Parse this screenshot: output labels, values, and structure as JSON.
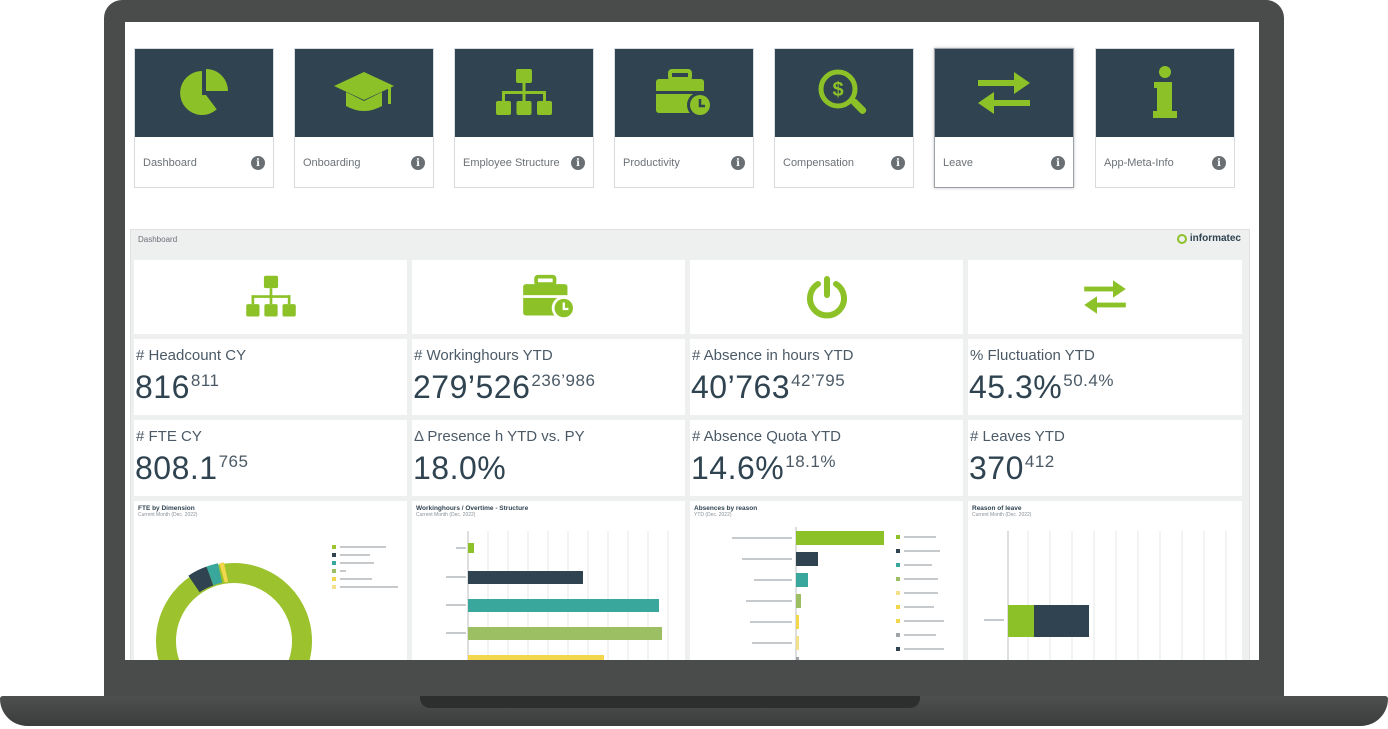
{
  "apps": [
    {
      "label": "Dashboard",
      "icon": "pie-chart-icon"
    },
    {
      "label": "Onboarding",
      "icon": "graduation-cap-icon"
    },
    {
      "label": "Employee Structure",
      "icon": "org-chart-icon"
    },
    {
      "label": "Productivity",
      "icon": "briefcase-clock-icon"
    },
    {
      "label": "Compensation",
      "icon": "dollar-search-icon"
    },
    {
      "label": "Leave",
      "icon": "swap-arrows-icon"
    },
    {
      "label": "App-Meta-Info",
      "icon": "info-icon"
    }
  ],
  "dashboard": {
    "title": "Dashboard",
    "logo_text": "informatec",
    "kpis": [
      {
        "title": "# Headcount CY",
        "value": "816",
        "previous": "811"
      },
      {
        "title": "# Workinghours YTD",
        "value": "279’526",
        "previous": "236’986"
      },
      {
        "title": "# Absence in hours YTD",
        "value": "40’763",
        "previous": "42’795"
      },
      {
        "title": "% Fluctuation YTD",
        "value": "45.3%",
        "previous": "50.4%"
      },
      {
        "title": "# FTE CY",
        "value": "808.1",
        "previous": "765"
      },
      {
        "title": "Δ Presence h YTD vs. PY",
        "value": "18.0%",
        "previous": ""
      },
      {
        "title": "# Absence Quota YTD",
        "value": "14.6%",
        "previous": "18.1%"
      },
      {
        "title": "# Leaves YTD",
        "value": "370",
        "previous": "412"
      }
    ],
    "charts": [
      {
        "title": "FTE by Dimension",
        "subtitle": "Current Month (Dec. 2022)"
      },
      {
        "title": "Workinghours / Overtime - Structure",
        "subtitle": "Current Month (Dec. 2022)"
      },
      {
        "title": "Absences by reason",
        "subtitle": "YTD (Dec. 2022)"
      },
      {
        "title": "Reason of leave",
        "subtitle": "Current Month (Dec. 2022)"
      }
    ]
  },
  "colors": {
    "tile_bg": "#2f4350",
    "accent_green": "#8cc228",
    "teal": "#3aa79c",
    "olive": "#9bbf62",
    "navy": "#2f4350",
    "yellow": "#f2d64b"
  }
}
